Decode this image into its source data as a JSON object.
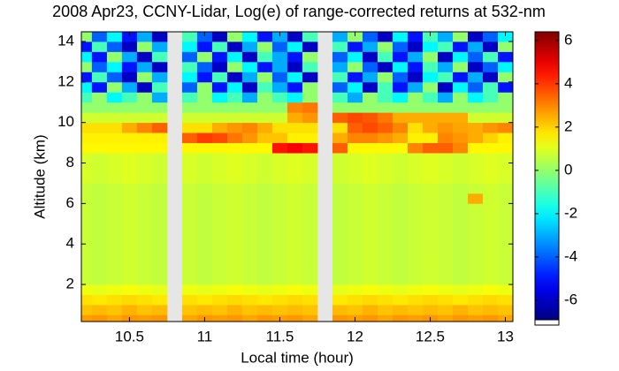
{
  "chart_data": {
    "type": "heatmap",
    "title": "2008 Apr23, CCNY-Lidar, Log(e) of range-corrected returns at 532-nm",
    "x_label": "Local time (hour)",
    "y_label": "Altitude (km)",
    "colormap": "jet",
    "x": [
      10.2,
      10.3,
      10.4,
      10.5,
      10.6,
      10.7,
      10.8,
      10.9,
      11.0,
      11.1,
      11.2,
      11.3,
      11.4,
      11.5,
      11.6,
      11.7,
      11.8,
      11.9,
      12.0,
      12.1,
      12.2,
      12.3,
      12.4,
      12.5,
      12.6,
      12.7,
      12.8,
      12.9,
      13.0
    ],
    "y": [
      0.25,
      0.75,
      1.25,
      1.75,
      2.25,
      2.75,
      3.25,
      3.75,
      4.25,
      4.75,
      5.25,
      5.75,
      6.25,
      6.75,
      7.25,
      7.75,
      8.25,
      8.75,
      9.25,
      9.75,
      10.25,
      10.75,
      11.25,
      11.75,
      12.25,
      12.75,
      13.25,
      13.75,
      14.25
    ],
    "z": [
      [
        2.7,
        2.8,
        2.6,
        2.8,
        2.7,
        2.8,
        null,
        2.6,
        2.8,
        2.7,
        2.8,
        2.6,
        2.8,
        2.7,
        2.8,
        2.6,
        null,
        2.8,
        2.7,
        2.8,
        2.6,
        2.8,
        2.7,
        2.8,
        2.6,
        2.8,
        2.7,
        2.8,
        2.6
      ],
      [
        2.2,
        2.3,
        2.2,
        2.4,
        2.2,
        2.3,
        null,
        2.2,
        2.3,
        2.2,
        2.4,
        2.2,
        2.3,
        2.2,
        2.3,
        2.2,
        null,
        2.3,
        2.2,
        2.4,
        2.2,
        2.3,
        2.2,
        2.3,
        2.2,
        2.4,
        2.2,
        2.3,
        2.2
      ],
      [
        1.8,
        1.7,
        1.8,
        1.9,
        1.8,
        1.7,
        null,
        1.8,
        1.7,
        1.8,
        1.9,
        1.8,
        1.7,
        1.8,
        1.9,
        1.8,
        null,
        1.7,
        1.8,
        1.9,
        1.8,
        1.7,
        1.8,
        1.9,
        1.8,
        1.7,
        1.8,
        1.9,
        1.8
      ],
      [
        1.2,
        1.1,
        1.2,
        1.3,
        1.2,
        1.1,
        null,
        1.2,
        1.1,
        1.2,
        1.3,
        1.2,
        1.1,
        1.2,
        1.3,
        1.2,
        null,
        1.1,
        1.2,
        1.3,
        1.2,
        1.1,
        1.2,
        1.3,
        1.2,
        1.1,
        1.2,
        1.3,
        1.2
      ],
      [
        0.7,
        0.6,
        0.7,
        0.8,
        0.7,
        0.6,
        null,
        0.7,
        0.6,
        0.7,
        0.8,
        0.7,
        0.6,
        0.7,
        0.8,
        0.7,
        null,
        0.6,
        0.7,
        0.8,
        0.7,
        0.6,
        0.7,
        0.8,
        0.7,
        0.6,
        0.7,
        0.8,
        0.7
      ],
      [
        0.7,
        0.6,
        0.7,
        0.8,
        0.7,
        0.6,
        null,
        0.7,
        0.6,
        0.7,
        0.8,
        0.7,
        0.6,
        0.7,
        0.8,
        0.7,
        null,
        0.6,
        0.7,
        0.8,
        0.7,
        0.6,
        0.7,
        0.8,
        0.7,
        0.6,
        0.7,
        0.8,
        0.7
      ],
      [
        0.7,
        0.6,
        0.7,
        0.8,
        0.7,
        0.6,
        null,
        0.7,
        0.6,
        0.7,
        0.8,
        0.7,
        0.6,
        0.7,
        0.8,
        0.7,
        null,
        0.6,
        0.7,
        0.8,
        0.7,
        0.6,
        0.7,
        0.8,
        0.7,
        0.6,
        0.7,
        0.8,
        0.7
      ],
      [
        0.7,
        0.6,
        0.7,
        0.8,
        0.7,
        0.6,
        null,
        0.7,
        0.6,
        0.7,
        0.8,
        0.7,
        0.6,
        0.7,
        0.8,
        0.7,
        null,
        0.6,
        0.7,
        0.8,
        0.7,
        0.6,
        0.7,
        0.8,
        0.7,
        0.6,
        0.7,
        0.8,
        0.7
      ],
      [
        0.7,
        0.6,
        0.7,
        0.8,
        0.7,
        0.6,
        null,
        0.7,
        0.6,
        0.7,
        0.8,
        0.7,
        0.6,
        0.7,
        0.8,
        0.7,
        null,
        0.6,
        0.7,
        0.8,
        0.7,
        0.6,
        0.7,
        0.8,
        0.7,
        0.6,
        0.7,
        0.8,
        0.7
      ],
      [
        0.7,
        0.6,
        0.7,
        0.8,
        0.7,
        0.6,
        null,
        0.7,
        0.6,
        0.7,
        0.8,
        0.7,
        0.6,
        0.7,
        0.8,
        0.7,
        null,
        0.6,
        0.7,
        0.8,
        0.7,
        0.6,
        0.7,
        0.8,
        0.7,
        0.6,
        0.7,
        0.8,
        0.7
      ],
      [
        0.7,
        0.6,
        0.7,
        0.8,
        0.7,
        0.6,
        null,
        0.7,
        0.6,
        0.7,
        0.8,
        0.7,
        0.6,
        0.7,
        0.8,
        0.7,
        null,
        0.6,
        0.7,
        0.8,
        0.7,
        0.6,
        0.7,
        0.8,
        0.7,
        0.6,
        0.7,
        0.8,
        0.7
      ],
      [
        0.7,
        0.6,
        0.7,
        0.8,
        0.7,
        0.6,
        null,
        0.7,
        0.6,
        0.7,
        0.8,
        0.7,
        0.6,
        0.7,
        0.8,
        0.7,
        null,
        0.6,
        0.7,
        0.8,
        0.7,
        0.6,
        0.7,
        0.8,
        0.7,
        0.6,
        0.7,
        0.8,
        0.7
      ],
      [
        0.7,
        0.6,
        0.7,
        0.8,
        0.7,
        0.6,
        null,
        0.7,
        0.6,
        0.7,
        0.8,
        0.7,
        0.6,
        0.7,
        0.8,
        0.7,
        null,
        0.6,
        0.7,
        0.8,
        0.7,
        0.6,
        0.7,
        0.8,
        0.7,
        0.6,
        2.5,
        0.8,
        0.7
      ],
      [
        0.7,
        0.6,
        0.7,
        0.8,
        0.7,
        0.6,
        null,
        0.7,
        0.6,
        0.7,
        0.8,
        0.7,
        0.6,
        0.7,
        0.8,
        0.7,
        null,
        0.6,
        0.7,
        0.8,
        0.7,
        0.6,
        0.7,
        0.8,
        0.7,
        0.6,
        0.7,
        0.8,
        0.7
      ],
      [
        0.9,
        0.8,
        0.9,
        1.0,
        0.9,
        0.8,
        null,
        0.9,
        0.8,
        0.9,
        1.0,
        0.9,
        0.8,
        0.9,
        1.0,
        0.9,
        null,
        0.8,
        0.9,
        1.0,
        0.9,
        0.8,
        0.9,
        1.0,
        0.9,
        0.8,
        0.9,
        1.0,
        0.9
      ],
      [
        0.9,
        0.8,
        0.9,
        1.0,
        0.9,
        0.8,
        null,
        0.9,
        0.8,
        0.9,
        1.0,
        0.9,
        0.8,
        0.9,
        1.0,
        0.9,
        null,
        0.8,
        0.9,
        1.0,
        0.9,
        0.8,
        0.9,
        1.0,
        0.9,
        0.8,
        0.9,
        1.0,
        0.9
      ],
      [
        0.9,
        0.8,
        0.9,
        1.0,
        0.9,
        0.8,
        null,
        0.9,
        0.8,
        0.9,
        1.0,
        0.9,
        0.8,
        0.9,
        1.0,
        0.9,
        null,
        0.8,
        0.9,
        1.0,
        0.9,
        0.8,
        0.9,
        1.0,
        0.9,
        0.8,
        0.9,
        1.0,
        0.9
      ],
      [
        1.5,
        1.5,
        1.5,
        1.5,
        1.5,
        1.5,
        null,
        1.5,
        1.5,
        1.5,
        1.5,
        1.5,
        1.5,
        4.5,
        4.8,
        4.5,
        null,
        3.5,
        1.5,
        1.5,
        1.5,
        1.5,
        3,
        3.5,
        3.5,
        3,
        1.5,
        1.5,
        1.5
      ],
      [
        1.6,
        1.6,
        1.6,
        1.6,
        1.6,
        1.6,
        null,
        3.5,
        4,
        3.8,
        3.2,
        2.8,
        2.2,
        2.2,
        1.6,
        1.6,
        null,
        2.5,
        3,
        3,
        2.8,
        2.5,
        1.6,
        1.6,
        3,
        2.8,
        2.5,
        2,
        1.6
      ],
      [
        1.8,
        1.8,
        1.8,
        2.5,
        3,
        3.5,
        null,
        1.8,
        1.8,
        2.5,
        2.8,
        3,
        2.5,
        1.8,
        1.8,
        1.8,
        null,
        1.8,
        3.5,
        3.8,
        3.5,
        3,
        1.8,
        2.5,
        2.8,
        2.6,
        2.5,
        2.8,
        3
      ],
      [
        0.8,
        0.8,
        0.8,
        0.8,
        0.8,
        0.8,
        null,
        0.8,
        0.8,
        0.8,
        0.8,
        0.8,
        0.8,
        0.8,
        2.5,
        2.8,
        null,
        3.5,
        3.8,
        3.6,
        3.2,
        2.5,
        2.5,
        2.5,
        2.5,
        2.5,
        0.8,
        0.8,
        0.8
      ],
      [
        0,
        0,
        0,
        0,
        0,
        0,
        null,
        0,
        0,
        0,
        0,
        0,
        0,
        0,
        3,
        3.2,
        null,
        0,
        0,
        0,
        0,
        0,
        0,
        0,
        0,
        0,
        0,
        0,
        0
      ],
      [
        -1,
        0,
        -2,
        -1,
        0,
        -3,
        null,
        -1,
        0,
        -2,
        -1,
        -3,
        0,
        -1,
        -2,
        0,
        null,
        -1,
        -3,
        0,
        -1,
        -2,
        0,
        -1,
        -3,
        0,
        -2,
        -1,
        0
      ],
      [
        -2,
        -5,
        0,
        -3,
        -6,
        -1,
        null,
        -4,
        0,
        -5,
        -2,
        -6,
        -1,
        -3,
        -5,
        0,
        null,
        -4,
        -2,
        -6,
        -1,
        -5,
        -3,
        0,
        -6,
        -2,
        -4,
        -1,
        -5
      ],
      [
        -5,
        -1,
        -4,
        -6,
        0,
        -3,
        null,
        -2,
        -5,
        -1,
        -6,
        -3,
        0,
        -4,
        -2,
        -6,
        null,
        -1,
        -5,
        -3,
        0,
        -4,
        -6,
        -2,
        -1,
        -5,
        -3,
        -6,
        0
      ],
      [
        0,
        -4,
        -2,
        -5,
        -3,
        -6,
        null,
        -1,
        -4,
        -6,
        0,
        -2,
        -5,
        -3,
        -6,
        -1,
        null,
        -3,
        0,
        -4,
        -6,
        -2,
        -5,
        -1,
        -3,
        0,
        -6,
        -4,
        -2
      ],
      [
        -2,
        -5,
        0,
        -3,
        -6,
        -1,
        null,
        -4,
        0,
        -5,
        -2,
        -6,
        -1,
        -3,
        -5,
        0,
        null,
        -4,
        -2,
        -6,
        -1,
        -5,
        -3,
        0,
        -6,
        -2,
        -4,
        -1,
        -5
      ],
      [
        -5,
        -1,
        -4,
        -6,
        0,
        -3,
        null,
        -2,
        -5,
        -1,
        -6,
        -3,
        0,
        -4,
        -2,
        -6,
        null,
        -1,
        -5,
        -3,
        0,
        -4,
        -6,
        -2,
        -1,
        -5,
        -3,
        -6,
        0
      ],
      [
        0,
        -4,
        -2,
        -5,
        -3,
        -6,
        null,
        -1,
        -4,
        -6,
        0,
        -2,
        -5,
        -3,
        -6,
        -1,
        null,
        -3,
        0,
        -4,
        -6,
        -2,
        -5,
        -1,
        -3,
        0,
        -6,
        -4,
        -2
      ]
    ],
    "xlim": [
      10.18,
      13.05
    ],
    "xticks": [
      10.5,
      11,
      11.5,
      12,
      12.5,
      13
    ],
    "ylim": [
      0.17,
      14.48
    ],
    "yticks": [
      2,
      4,
      6,
      8,
      10,
      12,
      14
    ],
    "clim": [
      -6.9,
      6.4
    ],
    "cticks": [
      -6,
      -4,
      -2,
      0,
      2,
      4,
      6
    ]
  }
}
